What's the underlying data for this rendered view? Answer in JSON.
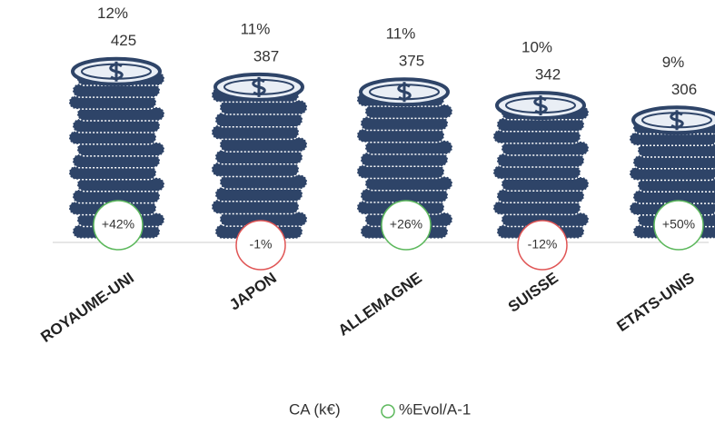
{
  "chart_data": {
    "type": "pictograph-bar",
    "categories": [
      "ROYAUME-UNI",
      "JAPON",
      "ALLEMAGNE",
      "SUISSE",
      "ETATS-UNIS"
    ],
    "series": [
      {
        "name": "CA (k€)",
        "color": "#2e4468",
        "values": [
          425,
          387,
          375,
          342,
          306
        ]
      },
      {
        "name": "%Evol/A-1",
        "color": "#5cb85c",
        "negative_color": "#e05555",
        "values": [
          42,
          -1,
          26,
          -12,
          50
        ],
        "value_labels": [
          "+42%",
          "-1%",
          "+26%",
          "-12%",
          "+50%"
        ]
      }
    ],
    "share": {
      "values": [
        12,
        11,
        11,
        10,
        9
      ],
      "value_labels": [
        "12%",
        "11%",
        "11%",
        "10%",
        "9%"
      ]
    }
  }
}
